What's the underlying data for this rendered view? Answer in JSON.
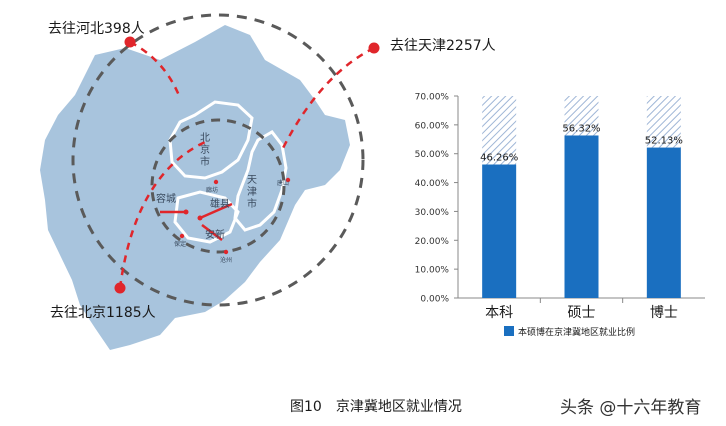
{
  "flows": [
    {
      "label": "去往河北398人"
    },
    {
      "label": "去往天津2257人"
    },
    {
      "label": "去往北京1185人"
    }
  ],
  "map_labels": {
    "beijing": [
      "北",
      "京",
      "市"
    ],
    "tianjin": [
      "天",
      "津",
      "市"
    ],
    "xiongxian": "雄县",
    "rongcheng": "容城",
    "anxin": "安新",
    "langfang": "廊坊",
    "baoding": "保定",
    "cangzhou": "沧州",
    "tangshan": "唐山"
  },
  "colors": {
    "map_fill": "#a8c4dd",
    "bar_solid": "#1a6fc0",
    "flow_line": "#e0262b",
    "circle": "#5a5a5a"
  },
  "chart_data": {
    "type": "bar",
    "categories": [
      "本科",
      "硕士",
      "博士"
    ],
    "series": [
      {
        "name": "本硕博在京津冀地区就业比例",
        "values": [
          46.26,
          56.32,
          52.13
        ]
      }
    ],
    "data_labels": [
      "46.26%",
      "56.32%",
      "52.13%"
    ],
    "y_ticks": [
      "0.00%",
      "10.00%",
      "20.00%",
      "30.00%",
      "40.00%",
      "50.00%",
      "60.00%",
      "70.00%"
    ],
    "ylim": [
      0,
      70
    ],
    "legend": {
      "position": "bottom",
      "label": "本硕博在京津冀地区就业比例"
    }
  },
  "caption": {
    "figure_no": "图10",
    "title": "京津冀地区就业情况"
  },
  "watermark": "头条 @十六年教育"
}
